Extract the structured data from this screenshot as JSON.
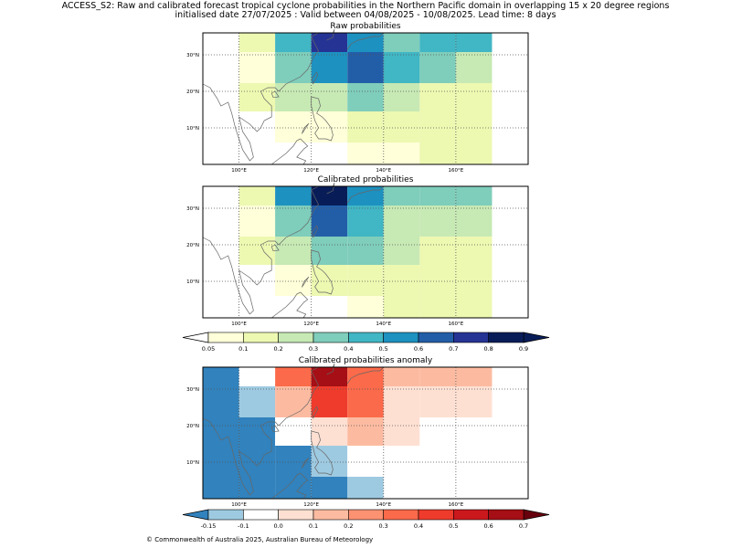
{
  "figure": {
    "title_line1": "ACCESS_S2: Raw and calibrated forecast tropical cyclone probabilities in the Northern Pacific domain in overlapping 15 x 20 degree regions",
    "title_line2": "initialised date 27/07/2025 :  Valid between 04/08/2025 - 10/08/2025. Lead time: 8 days",
    "copyright": "© Commonwealth of Australia 2025, Australian Bureau of Meteorology"
  },
  "map_axes": {
    "x_ticks": [
      100,
      120,
      140,
      160
    ],
    "x_tick_labels": [
      "100°E",
      "120°E",
      "140°E",
      "160°E"
    ],
    "y_ticks": [
      10,
      20,
      30
    ],
    "y_tick_labels": [
      "10°N",
      "20°N",
      "30°N"
    ],
    "lon_range": [
      90,
      180
    ],
    "lat_range": [
      0,
      36
    ]
  },
  "colorbars": [
    {
      "name": "probability",
      "tick_labels": [
        "0.05",
        "0.1",
        "0.2",
        "0.3",
        "0.4",
        "0.5",
        "0.6",
        "0.7",
        "0.8",
        "0.9"
      ],
      "colors": [
        "#ffffd9",
        "#edf8b1",
        "#c7e9b4",
        "#7fcdbb",
        "#41b6c4",
        "#1d91c0",
        "#225ea8",
        "#253494",
        "#081d58"
      ],
      "under_color": "#ffffff",
      "over_color": "#081d58"
    },
    {
      "name": "anomaly",
      "tick_labels": [
        "-0.15",
        "-0.1",
        "0.0",
        "0.1",
        "0.2",
        "0.3",
        "0.4",
        "0.5",
        "0.6",
        "0.7"
      ],
      "colors": [
        "#9ecae1",
        "#ffffff",
        "#fee0d2",
        "#fcbba1",
        "#fc9272",
        "#fb6a4a",
        "#ef3b2c",
        "#cb181d",
        "#a50f15"
      ],
      "under_color": "#3182bd",
      "over_color": "#67000d"
    }
  ],
  "chart_data": [
    {
      "type": "heatmap",
      "title": "Raw probabilities",
      "colorbar": "probability",
      "columns_lon": [
        100,
        110,
        120,
        130,
        140,
        150,
        160,
        170
      ],
      "rows_lat_bands": [
        "29-36",
        "22-29",
        "14-22",
        "7-14",
        "0-7"
      ],
      "color_levels": [
        [
          null,
          1,
          4,
          7,
          5,
          3,
          4,
          4
        ],
        [
          null,
          0,
          3,
          5,
          6,
          4,
          3,
          2
        ],
        [
          null,
          1,
          2,
          2,
          3,
          2,
          1,
          1
        ],
        [
          null,
          null,
          0,
          0,
          1,
          1,
          1,
          1
        ],
        [
          null,
          null,
          null,
          null,
          0,
          0,
          1,
          1
        ]
      ]
    },
    {
      "type": "heatmap",
      "title": "Calibrated probabilities",
      "colorbar": "probability",
      "columns_lon": [
        100,
        110,
        120,
        130,
        140,
        150,
        160,
        170
      ],
      "rows_lat_bands": [
        "29-36",
        "22-29",
        "14-22",
        "7-14",
        "0-7"
      ],
      "color_levels": [
        [
          null,
          1,
          5,
          8,
          5,
          3,
          3,
          3
        ],
        [
          null,
          0,
          3,
          6,
          4,
          2,
          2,
          2
        ],
        [
          null,
          1,
          2,
          3,
          3,
          2,
          1,
          1
        ],
        [
          null,
          null,
          0,
          1,
          1,
          1,
          1,
          1
        ],
        [
          null,
          null,
          null,
          null,
          0,
          1,
          1,
          1
        ]
      ]
    },
    {
      "type": "heatmap",
      "title": "Calibrated probabilities anomaly",
      "colorbar": "anomaly",
      "columns_lon": [
        100,
        110,
        120,
        130,
        140,
        150,
        160,
        170
      ],
      "rows_lat_bands": [
        "29-36",
        "22-29",
        "14-22",
        "7-14",
        "0-7"
      ],
      "color_levels": [
        [
          -1,
          1,
          5,
          8,
          5,
          3,
          3,
          3
        ],
        [
          -1,
          0,
          3,
          6,
          5,
          2,
          2,
          2
        ],
        [
          -1,
          -1,
          1,
          2,
          3,
          2,
          1,
          1
        ],
        [
          -1,
          -1,
          -1,
          0,
          1,
          1,
          1,
          1
        ],
        [
          -1,
          -1,
          -1,
          -1,
          0,
          1,
          1,
          1
        ]
      ]
    }
  ]
}
